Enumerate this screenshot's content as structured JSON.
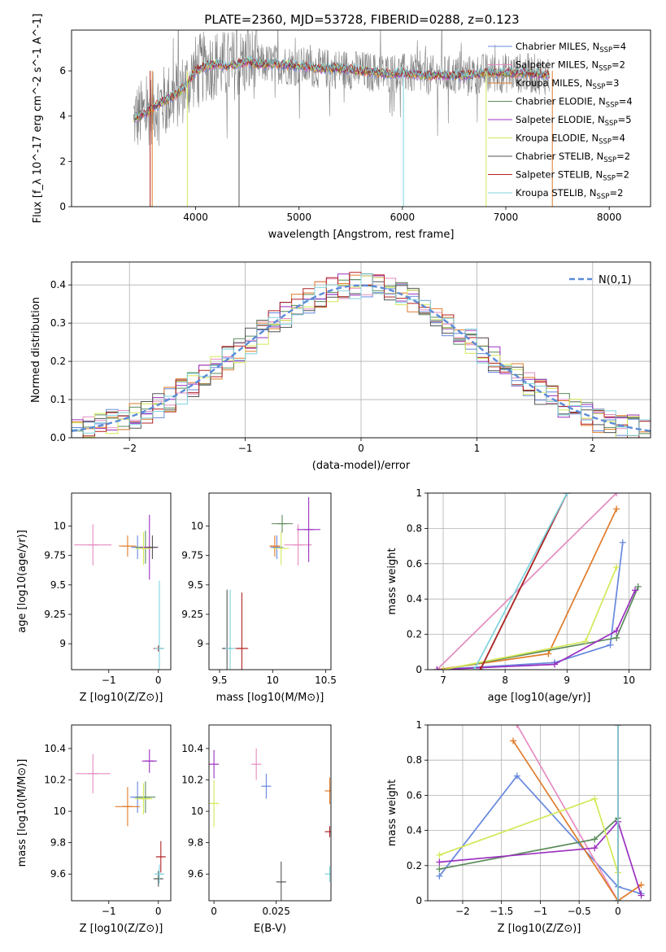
{
  "figure": {
    "title": "PLATE=2360, MJD=53728, FIBERID=0288, z=0.123"
  },
  "models": [
    {
      "name": "Chabrier MILES",
      "nssp": "4",
      "color": "#6688dd"
    },
    {
      "name": "Salpeter MILES",
      "nssp": "2",
      "color": "#e58bc0"
    },
    {
      "name": "Kroupa MILES",
      "nssp": "3",
      "color": "#e07b2a"
    },
    {
      "name": "Chabrier ELODIE",
      "nssp": "4",
      "color": "#5a8a5a"
    },
    {
      "name": "Salpeter ELODIE",
      "nssp": "5",
      "color": "#9b30c0"
    },
    {
      "name": "Kroupa ELODIE",
      "nssp": "4",
      "color": "#d4e857"
    },
    {
      "name": "Chabrier STELIB",
      "nssp": "2",
      "color": "#555555"
    },
    {
      "name": "Salpeter STELIB",
      "nssp": "2",
      "color": "#b22222"
    },
    {
      "name": "Kroupa STELIB",
      "nssp": "2",
      "color": "#7fd3dd"
    }
  ],
  "chart_data": [
    {
      "id": "spectrum",
      "type": "line",
      "xlabel": "wavelength [Angstrom, rest frame]",
      "ylabel": "Flux [f_λ 10^-17 erg cm^-2 s^-1 A^-1]",
      "xlim": [
        2800,
        8400
      ],
      "ylim": [
        0,
        7.8
      ],
      "xticks": [
        4000,
        5000,
        6000,
        7000,
        8000
      ],
      "yticks": [
        0,
        2,
        4,
        6
      ],
      "data_color": "#808080",
      "legend_position": "top-right",
      "continuum": {
        "x": [
          3400,
          3500,
          3600,
          3700,
          3800,
          3900,
          4000,
          4100,
          4200,
          4300,
          4400,
          4500,
          4600,
          4800,
          5000,
          5200,
          5400,
          5600,
          5800,
          6000,
          6200,
          6400,
          6600,
          6800,
          7000,
          7200,
          7400
        ],
        "y": [
          3.9,
          4.1,
          4.4,
          4.7,
          4.9,
          5.3,
          6.0,
          6.2,
          6.3,
          6.2,
          6.3,
          6.4,
          6.3,
          6.3,
          6.2,
          6.1,
          6.1,
          6.0,
          5.9,
          5.9,
          5.8,
          5.8,
          5.8,
          5.9,
          5.9,
          5.9,
          5.8
        ]
      }
    },
    {
      "id": "residuals",
      "type": "line",
      "xlabel": "(data-model)/error",
      "ylabel": "Normed distribution",
      "xlim": [
        -2.5,
        2.5
      ],
      "ylim": [
        0,
        0.46
      ],
      "xticks": [
        -2,
        -1,
        0,
        1,
        2
      ],
      "yticks": [
        0.0,
        0.1,
        0.2,
        0.3,
        0.4
      ],
      "grid": true,
      "gaussian": {
        "label": "N(0,1)",
        "mean": 0,
        "sigma": 1,
        "color": "#5b8bd8"
      },
      "legend_position": "top-right"
    },
    {
      "id": "age_vs_Z",
      "type": "scatter",
      "xlabel": "Z [log10(Z/Z⊙)]",
      "ylabel": "age [log10(age/yr)]",
      "xlim": [
        -1.75,
        0.25
      ],
      "ylim": [
        8.78,
        10.28
      ],
      "xticks": [
        -1,
        0
      ],
      "yticks": [
        9.0,
        9.25,
        9.5,
        9.75,
        10.0
      ],
      "points": [
        {
          "x": -1.32,
          "y": 9.84,
          "xerr": 0.75,
          "yerr": 0.35,
          "c": 1
        },
        {
          "x": -0.42,
          "y": 9.82,
          "xerr": 0.25,
          "yerr": 0.2,
          "c": 0
        },
        {
          "x": -0.62,
          "y": 9.83,
          "xerr": 0.35,
          "yerr": 0.18,
          "c": 2
        },
        {
          "x": -0.26,
          "y": 9.82,
          "xerr": 0.4,
          "yerr": 0.28,
          "c": 3
        },
        {
          "x": -0.18,
          "y": 9.82,
          "xerr": 0.35,
          "yerr": 0.55,
          "c": 4
        },
        {
          "x": -0.3,
          "y": 9.81,
          "xerr": 0.32,
          "yerr": 0.28,
          "c": 5
        },
        {
          "x": -0.12,
          "y": 9.82,
          "xerr": 0.2,
          "yerr": 0.2,
          "c": 6
        },
        {
          "x": 0.0,
          "y": 8.96,
          "xerr": 0.12,
          "yerr": 0.05,
          "c": 7
        },
        {
          "x": 0.02,
          "y": 8.96,
          "xerr": 0.15,
          "yerr": 1.15,
          "c": 8
        }
      ]
    },
    {
      "id": "age_vs_mass",
      "type": "scatter",
      "xlabel": "mass [log10(M/M⊙)]",
      "ylabel": "",
      "xlim": [
        9.4,
        10.55
      ],
      "ylim": [
        8.78,
        10.28
      ],
      "xticks": [
        9.5,
        10.0,
        10.5
      ],
      "yticks": [
        9.0,
        9.25,
        9.5,
        9.75,
        10.0
      ],
      "points": [
        {
          "x": 10.24,
          "y": 9.84,
          "xerr": 0.26,
          "yerr": 0.35,
          "c": 1
        },
        {
          "x": 10.04,
          "y": 9.82,
          "xerr": 0.12,
          "yerr": 0.2,
          "c": 0
        },
        {
          "x": 10.02,
          "y": 9.83,
          "xerr": 0.1,
          "yerr": 0.18,
          "c": 2
        },
        {
          "x": 10.09,
          "y": 10.02,
          "xerr": 0.2,
          "yerr": 0.15,
          "c": 3
        },
        {
          "x": 10.34,
          "y": 9.97,
          "xerr": 0.22,
          "yerr": 0.55,
          "c": 4
        },
        {
          "x": 10.08,
          "y": 9.81,
          "xerr": 0.15,
          "yerr": 0.28,
          "c": 5
        },
        {
          "x": 9.57,
          "y": 8.96,
          "xerr": 0.08,
          "yerr": 1.0,
          "c": 6
        },
        {
          "x": 9.71,
          "y": 8.96,
          "xerr": 0.12,
          "yerr": 0.95,
          "c": 7
        },
        {
          "x": 9.6,
          "y": 8.96,
          "xerr": 0.08,
          "yerr": 1.0,
          "c": 8
        }
      ]
    },
    {
      "id": "weight_vs_age",
      "type": "line",
      "xlabel": "age [log10(age/yr)]",
      "ylabel": "mass weight",
      "xlim": [
        6.75,
        10.35
      ],
      "ylim": [
        0,
        1.0
      ],
      "xticks": [
        7,
        8,
        9,
        10
      ],
      "yticks": [
        0.0,
        0.2,
        0.4,
        0.6,
        0.8,
        1.0
      ],
      "grid": true,
      "series": [
        {
          "c": 0,
          "x": [
            6.9,
            8.8,
            9.7,
            9.9
          ],
          "y": [
            0.0,
            0.04,
            0.14,
            0.72
          ]
        },
        {
          "c": 1,
          "x": [
            6.9,
            9.8
          ],
          "y": [
            0.0,
            1.0
          ]
        },
        {
          "c": 2,
          "x": [
            6.9,
            8.7,
            9.8
          ],
          "y": [
            0.0,
            0.09,
            0.91
          ]
        },
        {
          "c": 3,
          "x": [
            7.0,
            9.8,
            10.15
          ],
          "y": [
            0.0,
            0.18,
            0.47
          ]
        },
        {
          "c": 4,
          "x": [
            6.9,
            8.8,
            9.8,
            10.1
          ],
          "y": [
            0.0,
            0.03,
            0.22,
            0.45
          ]
        },
        {
          "c": 5,
          "x": [
            7.0,
            9.3,
            9.8
          ],
          "y": [
            0.0,
            0.16,
            0.58
          ]
        },
        {
          "c": 6,
          "x": [
            7.6,
            9.0
          ],
          "y": [
            0.0,
            1.0
          ]
        },
        {
          "c": 7,
          "x": [
            7.6,
            9.0
          ],
          "y": [
            0.0,
            1.0
          ]
        },
        {
          "c": 8,
          "x": [
            7.5,
            9.0
          ],
          "y": [
            0.0,
            1.0
          ]
        }
      ]
    },
    {
      "id": "mass_vs_Z",
      "type": "scatter",
      "xlabel": "Z [log10(Z/Z⊙)]",
      "ylabel": "mass [log10(M/M⊙)]",
      "xlim": [
        -1.75,
        0.25
      ],
      "ylim": [
        9.43,
        10.55
      ],
      "xticks": [
        -1,
        0
      ],
      "yticks": [
        9.6,
        9.8,
        10.0,
        10.2,
        10.4
      ],
      "points": [
        {
          "x": -1.32,
          "y": 10.24,
          "xerr": 0.7,
          "yerr": 0.25,
          "c": 1
        },
        {
          "x": -0.42,
          "y": 10.09,
          "xerr": 0.3,
          "yerr": 0.2,
          "c": 0
        },
        {
          "x": -0.62,
          "y": 10.03,
          "xerr": 0.5,
          "yerr": 0.25,
          "c": 2
        },
        {
          "x": -0.26,
          "y": 10.09,
          "xerr": 0.4,
          "yerr": 0.2,
          "c": 3
        },
        {
          "x": -0.18,
          "y": 10.32,
          "xerr": 0.3,
          "yerr": 0.15,
          "c": 4
        },
        {
          "x": -0.3,
          "y": 10.08,
          "xerr": 0.35,
          "yerr": 0.2,
          "c": 5
        },
        {
          "x": 0.0,
          "y": 9.57,
          "xerr": 0.1,
          "yerr": 0.1,
          "c": 6
        },
        {
          "x": 0.05,
          "y": 9.71,
          "xerr": 0.12,
          "yerr": 0.2,
          "c": 7
        },
        {
          "x": 0.02,
          "y": 9.6,
          "xerr": 0.15,
          "yerr": 0.12,
          "c": 8
        }
      ]
    },
    {
      "id": "mass_vs_ebv",
      "type": "scatter",
      "xlabel": "E(B-V)",
      "ylabel": "",
      "xlim": [
        -0.002,
        0.047
      ],
      "ylim": [
        9.43,
        10.55
      ],
      "xticks": [
        0.0,
        0.025
      ],
      "yticks": [
        9.6,
        9.8,
        10.0,
        10.2,
        10.4
      ],
      "points": [
        {
          "x": 0.017,
          "y": 10.3,
          "yerr": 0.2,
          "c": 1
        },
        {
          "x": 0.021,
          "y": 10.16,
          "yerr": 0.16,
          "c": 0
        },
        {
          "x": 0.0465,
          "y": 10.13,
          "yerr": 0.17,
          "c": 2
        },
        {
          "x": 0.0,
          "y": 10.3,
          "yerr": 0.18,
          "c": 4
        },
        {
          "x": 0.0,
          "y": 10.05,
          "yerr": 0.3,
          "c": 5
        },
        {
          "x": 0.027,
          "y": 9.55,
          "yerr": 0.26,
          "c": 6
        },
        {
          "x": 0.0465,
          "y": 9.87,
          "yerr": 0.07,
          "c": 7
        },
        {
          "x": 0.0465,
          "y": 9.6,
          "yerr": 0.1,
          "c": 8
        }
      ]
    },
    {
      "id": "weight_vs_Z",
      "type": "line",
      "xlabel": "Z [log10(Z/Z⊙)]",
      "ylabel": "mass weight",
      "xlim": [
        -2.45,
        0.42
      ],
      "ylim": [
        0,
        1.0
      ],
      "xticks": [
        -2.0,
        -1.5,
        -1.0,
        -0.5,
        0.0
      ],
      "yticks": [
        0.0,
        0.2,
        0.4,
        0.6,
        0.8,
        1.0
      ],
      "grid": true,
      "series": [
        {
          "c": 0,
          "x": [
            -2.3,
            -1.3,
            0.0,
            0.3
          ],
          "y": [
            0.14,
            0.71,
            0.08,
            0.04
          ]
        },
        {
          "c": 1,
          "x": [
            -1.3,
            0.0
          ],
          "y": [
            1.0,
            0.0
          ]
        },
        {
          "c": 2,
          "x": [
            -1.35,
            0.0,
            0.3
          ],
          "y": [
            0.91,
            0.0,
            0.09
          ]
        },
        {
          "c": 3,
          "x": [
            -2.3,
            -0.3,
            0.0
          ],
          "y": [
            0.18,
            0.35,
            0.47
          ]
        },
        {
          "c": 4,
          "x": [
            -2.3,
            -0.3,
            0.0,
            0.3
          ],
          "y": [
            0.22,
            0.3,
            0.45,
            0.03
          ]
        },
        {
          "c": 5,
          "x": [
            -2.3,
            -0.3,
            0.0
          ],
          "y": [
            0.26,
            0.58,
            0.16
          ]
        },
        {
          "c": 6,
          "x": [
            0.0,
            0.0
          ],
          "y": [
            0.0,
            1.0
          ]
        },
        {
          "c": 7,
          "x": [
            0.0,
            0.0
          ],
          "y": [
            0.0,
            1.0
          ]
        },
        {
          "c": 8,
          "x": [
            0.0,
            0.0
          ],
          "y": [
            0.0,
            1.0
          ]
        }
      ]
    }
  ]
}
